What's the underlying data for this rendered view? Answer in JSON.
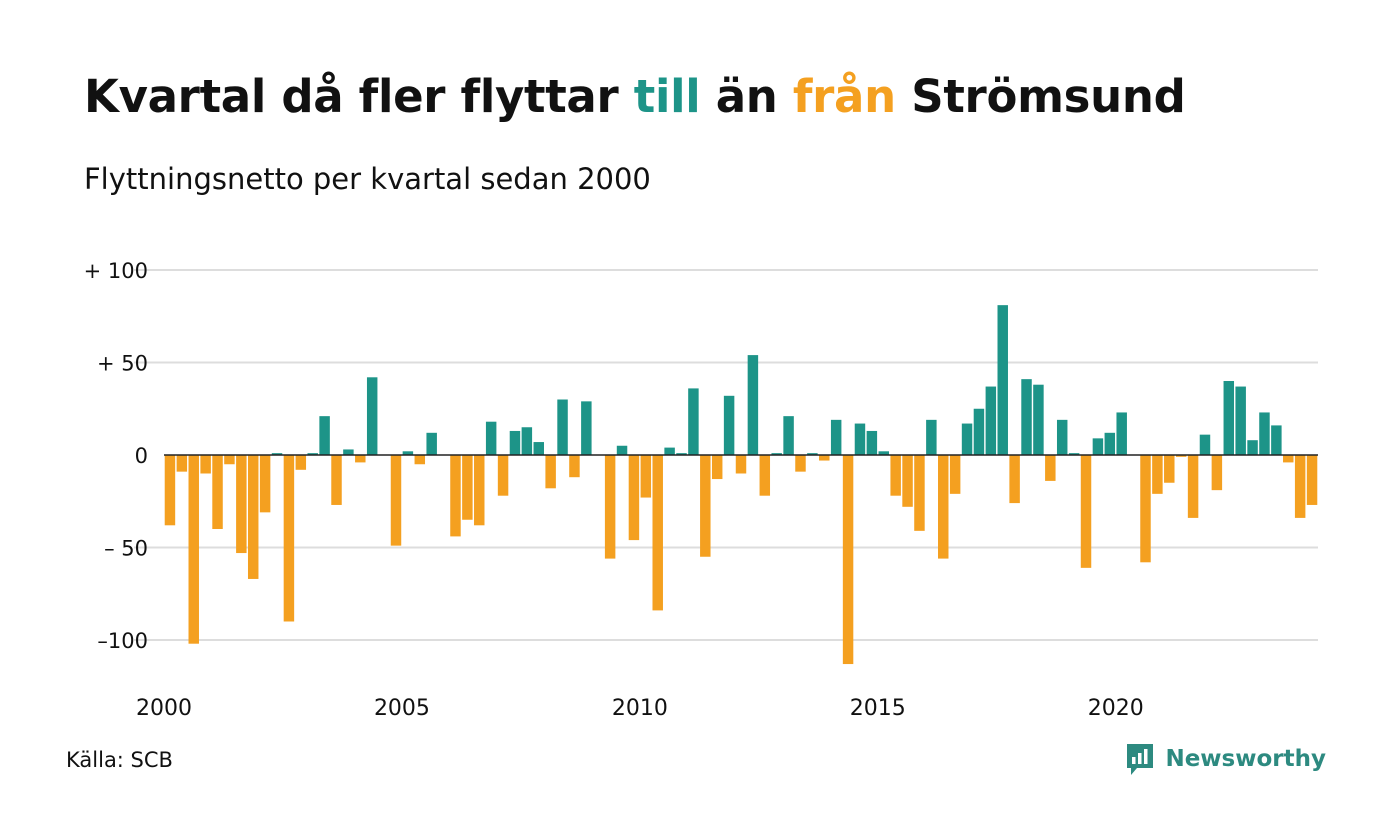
{
  "header": {
    "title_part1": "Kvartal då fler flyttar ",
    "title_pos_word": "till",
    "title_part2": " än ",
    "title_neg_word": "från",
    "title_part3": " Strömsund",
    "subtitle": "Flyttningsnetto per kvartal sedan 2000"
  },
  "footer": {
    "source": "Källa: SCB",
    "brand": "Newsworthy"
  },
  "colors": {
    "positive": "#1d9488",
    "negative": "#f4a020",
    "grid": "#dddddd",
    "zero_line": "#222222",
    "text": "#111111",
    "brand": "#2d8a80"
  },
  "chart_data": {
    "type": "bar",
    "title": "Kvartal då fler flyttar till än från Strömsund",
    "subtitle": "Flyttningsnetto per kvartal sedan 2000",
    "xlabel": "",
    "ylabel": "",
    "ylim": [
      -120,
      100
    ],
    "yticks": [
      {
        "value": 100,
        "label": "+ 100"
      },
      {
        "value": 50,
        "label": "+  50"
      },
      {
        "value": 0,
        "label": "0"
      },
      {
        "value": -50,
        "label": "– 50"
      },
      {
        "value": -100,
        "label": "–100"
      }
    ],
    "xticks": [
      "2000",
      "2005",
      "2010",
      "2015",
      "2020"
    ],
    "grid": true,
    "legend": "none",
    "start_year": 2000,
    "series": [
      {
        "values": [
          -38,
          -9,
          -102,
          -10,
          -40,
          -5,
          -53,
          -67,
          -31,
          1,
          -90,
          -8,
          1,
          21,
          -27,
          3,
          -4,
          42,
          0,
          -49,
          2,
          -5,
          12,
          0,
          -44,
          -35,
          -38,
          18,
          -22,
          13,
          15,
          7,
          -18,
          30,
          -12,
          29,
          0,
          -56,
          5,
          -46,
          -23,
          -84,
          4,
          1,
          36,
          -55,
          -13,
          32,
          -10,
          54,
          -22,
          1,
          21,
          -9,
          1,
          -3,
          19,
          -113,
          17,
          13,
          2,
          -22,
          -28,
          -41,
          19,
          -56,
          -21,
          17,
          25,
          37,
          81,
          -26,
          41,
          38,
          -14,
          19,
          1,
          -61,
          9,
          12,
          23,
          0,
          -58,
          -21,
          -15,
          -1,
          -34,
          11,
          -19,
          40,
          37,
          8,
          23,
          16,
          -4,
          -34,
          -27
        ]
      }
    ]
  }
}
